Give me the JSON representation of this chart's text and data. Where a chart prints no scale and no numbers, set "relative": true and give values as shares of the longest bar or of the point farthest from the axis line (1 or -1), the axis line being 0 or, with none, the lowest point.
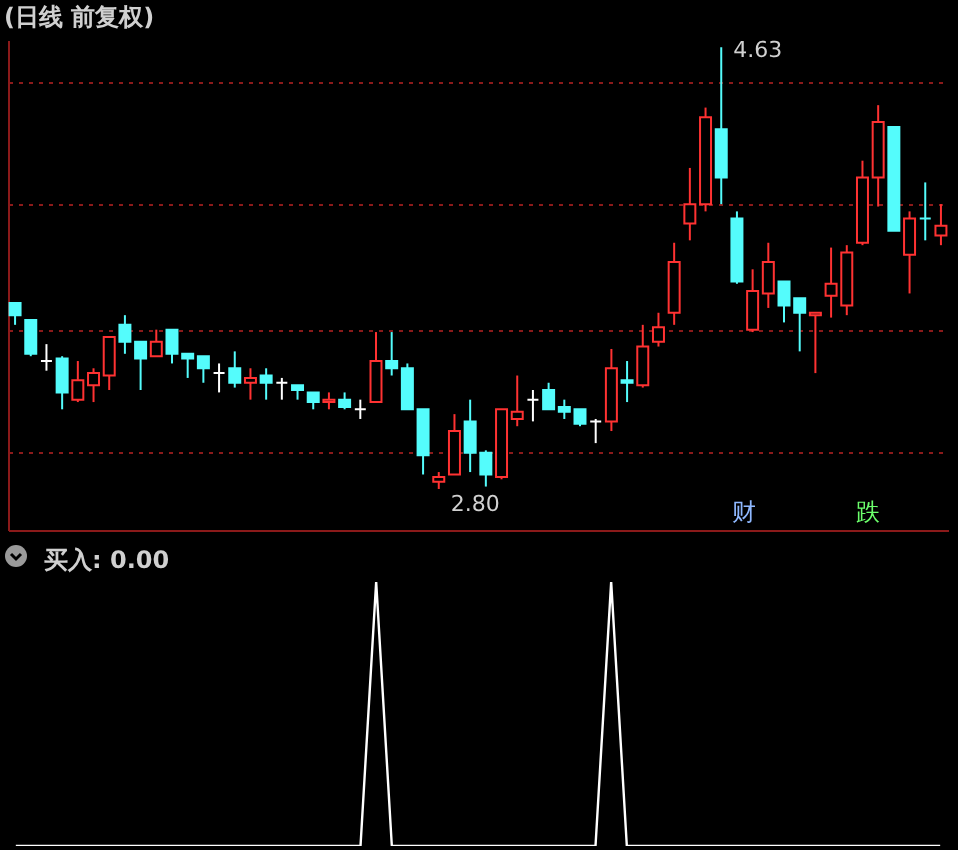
{
  "chart_data": [
    {
      "type": "candlestick",
      "title": "(日线 前复权)",
      "categories": [
        null,
        null,
        null,
        null,
        null,
        null,
        null,
        null,
        null,
        null,
        null,
        null,
        null,
        null,
        null,
        null,
        null,
        null,
        null,
        null,
        null,
        null,
        null,
        null,
        null,
        null,
        null,
        null,
        null,
        null,
        null,
        null,
        null,
        null,
        null,
        null,
        null,
        null,
        null,
        null,
        null,
        null,
        null,
        null,
        null,
        null,
        null,
        null,
        null,
        null,
        null,
        null,
        null,
        null,
        null,
        null,
        null,
        null,
        null,
        null
      ],
      "ohlc": [
        [
          3.57,
          3.57,
          3.48,
          3.52
        ],
        [
          3.5,
          3.5,
          3.35,
          3.36
        ],
        [
          3.33,
          3.4,
          3.29,
          3.33
        ],
        [
          3.34,
          3.35,
          3.13,
          3.2
        ],
        [
          3.17,
          3.33,
          3.16,
          3.25
        ],
        [
          3.23,
          3.3,
          3.16,
          3.28
        ],
        [
          3.27,
          3.43,
          3.21,
          3.43
        ],
        [
          3.48,
          3.52,
          3.36,
          3.41
        ],
        [
          3.41,
          3.41,
          3.21,
          3.34
        ],
        [
          3.35,
          3.46,
          3.35,
          3.41
        ],
        [
          3.46,
          3.46,
          3.32,
          3.36
        ],
        [
          3.36,
          3.36,
          3.26,
          3.34
        ],
        [
          3.35,
          3.35,
          3.24,
          3.3
        ],
        [
          3.28,
          3.32,
          3.2,
          3.28
        ],
        [
          3.3,
          3.37,
          3.22,
          3.24
        ],
        [
          3.24,
          3.3,
          3.17,
          3.26
        ],
        [
          3.27,
          3.3,
          3.17,
          3.24
        ],
        [
          3.24,
          3.26,
          3.17,
          3.24
        ],
        [
          3.23,
          3.23,
          3.17,
          3.21
        ],
        [
          3.2,
          3.2,
          3.13,
          3.16
        ],
        [
          3.16,
          3.2,
          3.13,
          3.17
        ],
        [
          3.17,
          3.2,
          3.13,
          3.14
        ],
        [
          3.13,
          3.17,
          3.09,
          3.13
        ],
        [
          3.16,
          3.45,
          3.16,
          3.33
        ],
        [
          3.33,
          3.45,
          3.27,
          3.3
        ],
        [
          3.3,
          3.32,
          3.13,
          3.13
        ],
        [
          3.13,
          3.13,
          2.86,
          2.94
        ],
        [
          2.83,
          2.87,
          2.8,
          2.85
        ],
        [
          2.86,
          3.11,
          2.86,
          3.04
        ],
        [
          3.08,
          3.17,
          2.87,
          2.95
        ],
        [
          2.95,
          2.96,
          2.81,
          2.86
        ],
        [
          2.85,
          3.13,
          2.84,
          3.13
        ],
        [
          3.09,
          3.27,
          3.06,
          3.12
        ],
        [
          3.17,
          3.21,
          3.08,
          3.17
        ],
        [
          3.21,
          3.24,
          3.13,
          3.13
        ],
        [
          3.14,
          3.17,
          3.09,
          3.12
        ],
        [
          3.13,
          3.13,
          3.06,
          3.07
        ],
        [
          3.08,
          3.09,
          2.99,
          3.08
        ],
        [
          3.08,
          3.38,
          3.04,
          3.3
        ],
        [
          3.25,
          3.33,
          3.16,
          3.24
        ],
        [
          3.23,
          3.48,
          3.22,
          3.39
        ],
        [
          3.41,
          3.53,
          3.39,
          3.47
        ],
        [
          3.53,
          3.82,
          3.48,
          3.74
        ],
        [
          3.9,
          4.13,
          3.83,
          3.98
        ],
        [
          3.98,
          4.38,
          3.95,
          4.34
        ],
        [
          4.29,
          4.63,
          3.98,
          4.09
        ],
        [
          3.92,
          3.95,
          3.65,
          3.66
        ],
        [
          3.46,
          3.71,
          3.45,
          3.62
        ],
        [
          3.61,
          3.82,
          3.55,
          3.74
        ],
        [
          3.66,
          3.66,
          3.49,
          3.56
        ],
        [
          3.59,
          3.59,
          3.37,
          3.53
        ],
        [
          3.52,
          3.53,
          3.28,
          3.53
        ],
        [
          3.6,
          3.8,
          3.51,
          3.65
        ],
        [
          3.56,
          3.81,
          3.52,
          3.78
        ],
        [
          3.82,
          4.16,
          3.81,
          4.09
        ],
        [
          4.09,
          4.39,
          3.97,
          4.32
        ],
        [
          4.3,
          4.3,
          3.87,
          3.87
        ],
        [
          3.77,
          3.95,
          3.61,
          3.92
        ],
        [
          3.92,
          4.07,
          3.83,
          3.92
        ],
        [
          3.85,
          3.98,
          3.81,
          3.89
        ]
      ],
      "colors": [
        "#54fcfc",
        "#54fcfc",
        "#ffffff",
        "#54fcfc",
        "#ff3232",
        "#ff3232",
        "#ff3232",
        "#54fcfc",
        "#54fcfc",
        "#ff3232",
        "#54fcfc",
        "#54fcfc",
        "#54fcfc",
        "#ffffff",
        "#54fcfc",
        "#ff3232",
        "#54fcfc",
        "#ffffff",
        "#54fcfc",
        "#54fcfc",
        "#ff3232",
        "#54fcfc",
        "#ffffff",
        "#ff3232",
        "#54fcfc",
        "#54fcfc",
        "#54fcfc",
        "#ff3232",
        "#ff3232",
        "#54fcfc",
        "#54fcfc",
        "#ff3232",
        "#ff3232",
        "#ffffff",
        "#54fcfc",
        "#54fcfc",
        "#54fcfc",
        "#ffffff",
        "#ff3232",
        "#54fcfc",
        "#ff3232",
        "#ff3232",
        "#ff3232",
        "#ff3232",
        "#ff3232",
        "#54fcfc",
        "#54fcfc",
        "#ff3232",
        "#ff3232",
        "#54fcfc",
        "#54fcfc",
        "#ff3232",
        "#ff3232",
        "#ff3232",
        "#ff3232",
        "#ff3232",
        "#54fcfc",
        "#ff3232",
        "#54fcfc",
        "#ff3232"
      ],
      "ylim": [
        2.63,
        4.66
      ],
      "yticks": [
        {
          "value": 2.95,
          "label": null
        },
        {
          "value": 3.46,
          "label": null
        },
        {
          "value": 3.98,
          "label": null
        },
        {
          "value": 4.49,
          "label": null
        }
      ],
      "grid": "y",
      "annotations": [
        "4.63",
        "2.80",
        "财",
        "跌"
      ]
    },
    {
      "type": "line",
      "title": "买入: 0.00",
      "categories": [
        null,
        null,
        null,
        null,
        null,
        null,
        null,
        null,
        null,
        null,
        null,
        null,
        null,
        null,
        null,
        null,
        null,
        null,
        null,
        null,
        null,
        null,
        null,
        null,
        null,
        null,
        null,
        null,
        null,
        null,
        null,
        null,
        null,
        null,
        null,
        null,
        null,
        null,
        null,
        null,
        null,
        null,
        null,
        null,
        null,
        null,
        null,
        null,
        null,
        null,
        null,
        null,
        null,
        null,
        null,
        null,
        null,
        null,
        null,
        null
      ],
      "series": [
        {
          "color": "#ffffff",
          "values": [
            0,
            0,
            0,
            0,
            0,
            0,
            0,
            0,
            0,
            0,
            0,
            0,
            0,
            0,
            0,
            0,
            0,
            0,
            0,
            0,
            0,
            0,
            0,
            1,
            0,
            0,
            0,
            0,
            0,
            0,
            0,
            0,
            0,
            0,
            0,
            0,
            0,
            0,
            1,
            0,
            0,
            0,
            0,
            0,
            0,
            0,
            0,
            0,
            0,
            0,
            0,
            0,
            0,
            0,
            0,
            0,
            0,
            0,
            0,
            0
          ]
        }
      ],
      "relative": true
    }
  ]
}
